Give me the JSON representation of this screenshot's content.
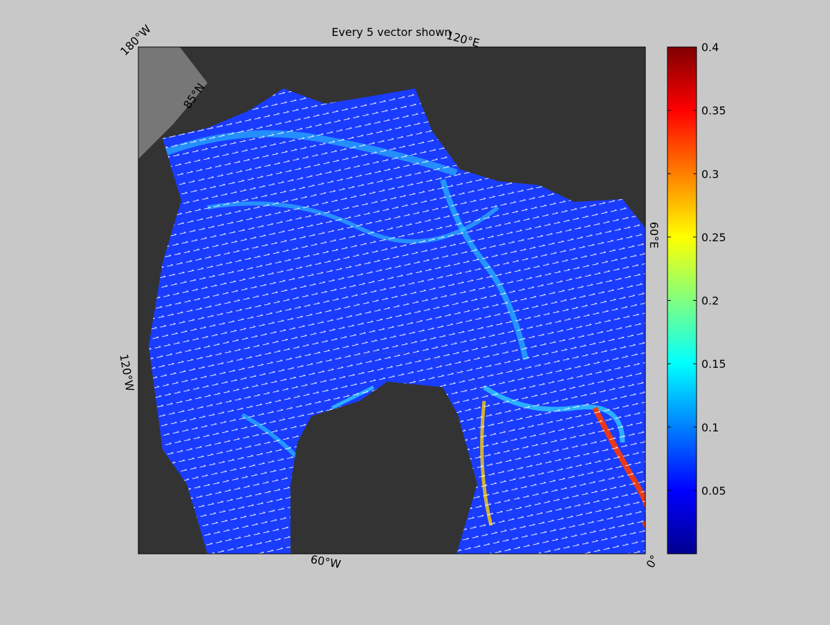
{
  "map": {
    "title": "Every 5 vector shown",
    "longitude_labels": [
      "180°W",
      "120°E",
      "60°E",
      "0°",
      "60°W",
      "120°W"
    ],
    "latitude_labels": [
      "85°N"
    ],
    "colorbar": {
      "colormap": "jet",
      "lim": [
        0,
        0.4
      ],
      "ticks": [
        0.05,
        0.1,
        0.15,
        0.2,
        0.25,
        0.3,
        0.35,
        0.4
      ]
    }
  }
}
